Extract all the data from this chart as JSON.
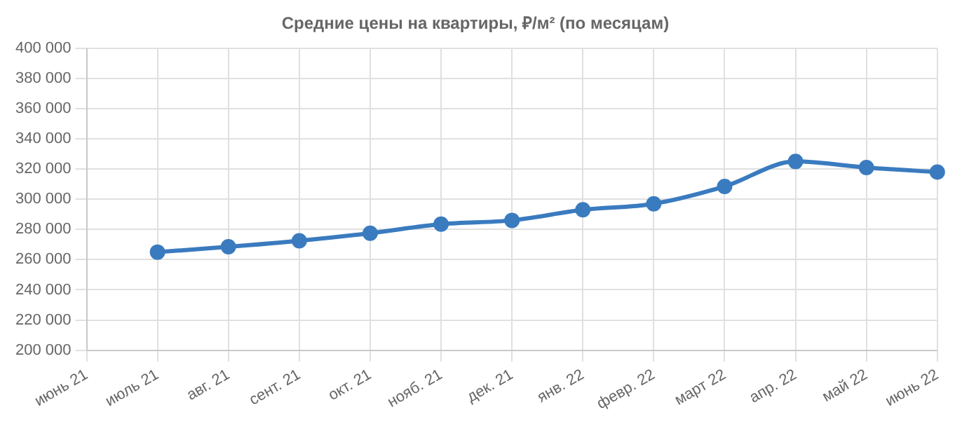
{
  "chart_data": {
    "type": "line",
    "title": "Средние цены на квартиры, ₽/м² (по месяцам)",
    "categories": [
      "июнь 21",
      "июль 21",
      "авг. 21",
      "сент. 21",
      "окт. 21",
      "нояб. 21",
      "дек. 21",
      "янв. 22",
      "февр. 22",
      "март 22",
      "апр. 22",
      "май 22",
      "июнь 22"
    ],
    "series": [
      {
        "color": "#3a7bbf",
        "values": [
          null,
          265000,
          268500,
          272500,
          277500,
          283500,
          286000,
          293000,
          297000,
          308500,
          325000,
          321000,
          318000
        ]
      }
    ],
    "ylim": [
      200000,
      400000
    ],
    "yticks": [
      {
        "value": 200000,
        "label": "200 000"
      },
      {
        "value": 220000,
        "label": "220 000"
      },
      {
        "value": 240000,
        "label": "240 000"
      },
      {
        "value": 260000,
        "label": "260 000"
      },
      {
        "value": 280000,
        "label": "280 000"
      },
      {
        "value": 300000,
        "label": "300 000"
      },
      {
        "value": 320000,
        "label": "320 000"
      },
      {
        "value": 340000,
        "label": "340 000"
      },
      {
        "value": 360000,
        "label": "360 000"
      },
      {
        "value": 380000,
        "label": "380 000"
      },
      {
        "value": 400000,
        "label": "400 000"
      }
    ],
    "grid": true,
    "legend": false,
    "marker": "circle",
    "line_style": "solid"
  }
}
